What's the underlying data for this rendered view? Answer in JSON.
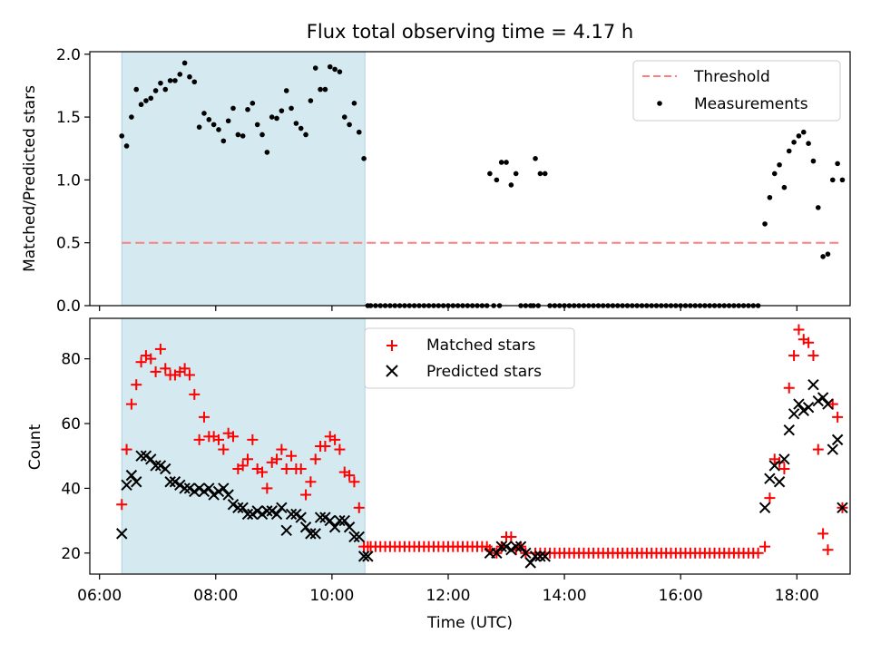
{
  "chart_data": [
    {
      "type": "scatter",
      "title": "Flux total observing time = 4.17 h",
      "xlabel": "",
      "ylabel": "Matched/Predicted stars",
      "xlim": [
        "05:50",
        "18:55"
      ],
      "ylim": [
        0,
        2.02
      ],
      "yticks": [
        "0.0",
        "0.5",
        "1.0",
        "1.5",
        "2.0"
      ],
      "shaded_region": {
        "x": [
          "06:23",
          "10:34"
        ],
        "color": "#d4e9f0"
      },
      "threshold": {
        "value": 0.5,
        "x": [
          "06:23",
          "18:45"
        ],
        "color": "#ff7f7f",
        "style": "dashed"
      },
      "legend": {
        "position": "top-right",
        "entries": [
          "Threshold",
          "Measurements"
        ]
      },
      "series": [
        {
          "name": "Measurements",
          "color": "#000000",
          "marker": "dot",
          "x": [
            "06:23",
            "06:28",
            "06:33",
            "06:38",
            "06:43",
            "06:48",
            "06:53",
            "06:58",
            "07:03",
            "07:08",
            "07:13",
            "07:18",
            "07:23",
            "07:28",
            "07:33",
            "07:38",
            "07:43",
            "07:48",
            "07:53",
            "07:58",
            "08:03",
            "08:08",
            "08:13",
            "08:18",
            "08:23",
            "08:28",
            "08:33",
            "08:38",
            "08:43",
            "08:48",
            "08:53",
            "08:58",
            "09:03",
            "09:08",
            "09:13",
            "09:18",
            "09:23",
            "09:28",
            "09:33",
            "09:38",
            "09:43",
            "09:48",
            "09:53",
            "09:58",
            "10:03",
            "10:08",
            "10:13",
            "10:18",
            "10:23",
            "10:28",
            "10:33",
            "10:37",
            "12:43",
            "12:50",
            "12:55",
            "13:00",
            "13:05",
            "13:10",
            "13:15",
            "13:20",
            "13:30",
            "13:35",
            "13:40",
            "13:45",
            "17:27",
            "17:32",
            "17:37",
            "17:42",
            "17:47",
            "17:52",
            "17:57",
            "18:02",
            "18:07",
            "18:12",
            "18:17",
            "18:22",
            "18:27",
            "18:32",
            "18:37",
            "18:42",
            "18:47"
          ],
          "y": [
            1.35,
            1.27,
            1.5,
            1.72,
            1.6,
            1.63,
            1.65,
            1.71,
            1.77,
            1.72,
            1.79,
            1.79,
            1.84,
            1.93,
            1.82,
            1.78,
            1.42,
            1.53,
            1.48,
            1.44,
            1.4,
            1.31,
            1.47,
            1.57,
            1.36,
            1.35,
            1.56,
            1.61,
            1.44,
            1.36,
            1.22,
            1.5,
            1.49,
            1.55,
            1.71,
            1.57,
            1.45,
            1.41,
            1.36,
            1.63,
            1.89,
            1.72,
            1.72,
            1.9,
            1.88,
            1.86,
            1.5,
            1.44,
            1.61,
            1.38,
            1.17,
            0.0,
            1.05,
            1.0,
            1.14,
            1.14,
            0.96,
            1.05,
            0.0,
            0.0,
            1.17,
            1.05,
            1.05,
            0.0,
            0.65,
            0.86,
            1.05,
            1.12,
            0.94,
            1.23,
            1.3,
            1.35,
            1.38,
            1.29,
            1.15,
            0.78,
            0.39,
            0.41,
            1.0,
            1.13,
            1.0
          ]
        },
        {
          "name": "",
          "color": "#000000",
          "marker": "dot",
          "y_constant": 0.0,
          "x": [
            "10:40",
            "10:45",
            "10:50",
            "10:55",
            "11:00",
            "11:05",
            "11:10",
            "11:15",
            "11:20",
            "11:25",
            "11:30",
            "11:35",
            "11:40",
            "11:45",
            "11:50",
            "11:55",
            "12:00",
            "12:05",
            "12:10",
            "12:15",
            "12:20",
            "12:25",
            "12:30",
            "12:35",
            "12:40",
            "12:47",
            "12:53",
            "13:25",
            "13:28",
            "13:33",
            "13:50",
            "13:55",
            "14:00",
            "14:05",
            "14:10",
            "14:15",
            "14:20",
            "14:25",
            "14:30",
            "14:35",
            "14:40",
            "14:45",
            "14:50",
            "14:55",
            "15:00",
            "15:05",
            "15:10",
            "15:15",
            "15:20",
            "15:25",
            "15:30",
            "15:35",
            "15:40",
            "15:45",
            "15:50",
            "15:55",
            "16:00",
            "16:05",
            "16:10",
            "16:15",
            "16:20",
            "16:25",
            "16:30",
            "16:35",
            "16:40",
            "16:45",
            "16:50",
            "16:55",
            "17:00",
            "17:05",
            "17:10",
            "17:15",
            "17:20"
          ]
        }
      ]
    },
    {
      "type": "scatter",
      "title": "",
      "xlabel": "Time (UTC)",
      "ylabel": "Count",
      "xlim": [
        "05:50",
        "18:55"
      ],
      "ylim": [
        13.5,
        92.5
      ],
      "yticks": [
        "20",
        "40",
        "60",
        "80"
      ],
      "xticks": [
        "06:00",
        "08:00",
        "10:00",
        "12:00",
        "14:00",
        "16:00",
        "18:00"
      ],
      "shaded_region": {
        "x": [
          "06:23",
          "10:34"
        ],
        "color": "#d4e9f0"
      },
      "legend": {
        "position": "top-center",
        "entries": [
          "Matched stars",
          "Predicted stars"
        ]
      },
      "series": [
        {
          "name": "Matched stars",
          "color": "#ff0000",
          "marker": "plus",
          "x": [
            "06:23",
            "06:28",
            "06:33",
            "06:38",
            "06:43",
            "06:48",
            "06:53",
            "06:58",
            "07:03",
            "07:08",
            "07:13",
            "07:18",
            "07:23",
            "07:28",
            "07:33",
            "07:38",
            "07:43",
            "07:48",
            "07:53",
            "07:58",
            "08:03",
            "08:08",
            "08:13",
            "08:18",
            "08:23",
            "08:28",
            "08:33",
            "08:38",
            "08:43",
            "08:48",
            "08:53",
            "08:58",
            "09:03",
            "09:08",
            "09:13",
            "09:18",
            "09:23",
            "09:28",
            "09:33",
            "09:38",
            "09:43",
            "09:48",
            "09:53",
            "09:58",
            "10:03",
            "10:08",
            "10:13",
            "10:18",
            "10:23",
            "10:28",
            "10:33",
            "10:37",
            "12:43",
            "12:50",
            "12:55",
            "13:00",
            "13:05",
            "13:10",
            "13:15",
            "13:20",
            "13:30",
            "13:35",
            "13:40",
            "13:45",
            "17:27",
            "17:32",
            "17:37",
            "17:42",
            "17:47",
            "17:52",
            "17:57",
            "18:02",
            "18:07",
            "18:12",
            "18:17",
            "18:22",
            "18:27",
            "18:32",
            "18:37",
            "18:42",
            "18:47"
          ],
          "y": [
            35,
            52,
            66,
            72,
            79,
            81,
            80,
            76,
            83,
            77,
            75,
            75,
            76,
            77,
            75,
            69,
            55,
            62,
            56,
            56,
            55,
            52,
            57,
            56,
            46,
            47,
            49,
            55,
            46,
            45,
            40,
            48,
            49,
            52,
            46,
            50,
            46,
            46,
            38,
            42,
            49,
            53,
            53,
            56,
            55,
            52,
            45,
            44,
            42,
            34,
            22,
            22,
            21,
            20,
            22,
            25,
            25,
            21,
            22,
            20,
            20,
            20,
            20,
            20,
            22,
            37,
            49,
            48,
            46,
            71,
            81,
            89,
            86,
            85,
            81,
            52,
            26,
            21,
            66,
            62,
            34
          ],
          "note_hidden_tail": "last value shown near 34 at 18:47"
        },
        {
          "name": "",
          "color": "#ff0000",
          "marker": "plus",
          "y_constant": 22,
          "x": [
            "10:40",
            "10:45",
            "10:50",
            "10:55",
            "11:00",
            "11:05",
            "11:10",
            "11:15",
            "11:20",
            "11:25",
            "11:30",
            "11:35",
            "11:40",
            "11:45",
            "11:50",
            "11:55",
            "12:00",
            "12:05",
            "12:10",
            "12:15",
            "12:20",
            "12:25",
            "12:30",
            "12:35",
            "12:40"
          ]
        },
        {
          "name": "",
          "color": "#ff0000",
          "marker": "plus",
          "y_constant": 20,
          "x": [
            "13:50",
            "13:55",
            "14:00",
            "14:05",
            "14:10",
            "14:15",
            "14:20",
            "14:25",
            "14:30",
            "14:35",
            "14:40",
            "14:45",
            "14:50",
            "14:55",
            "15:00",
            "15:05",
            "15:10",
            "15:15",
            "15:20",
            "15:25",
            "15:30",
            "15:35",
            "15:40",
            "15:45",
            "15:50",
            "15:55",
            "16:00",
            "16:05",
            "16:10",
            "16:15",
            "16:20",
            "16:25",
            "16:30",
            "16:35",
            "16:40",
            "16:45",
            "16:50",
            "16:55",
            "17:00",
            "17:05",
            "17:10",
            "17:15",
            "17:20"
          ]
        },
        {
          "name": "Predicted stars",
          "color": "#000000",
          "marker": "x",
          "x": [
            "06:23",
            "06:28",
            "06:33",
            "06:38",
            "06:43",
            "06:48",
            "06:53",
            "06:58",
            "07:03",
            "07:08",
            "07:13",
            "07:18",
            "07:23",
            "07:28",
            "07:33",
            "07:38",
            "07:43",
            "07:48",
            "07:53",
            "07:58",
            "08:03",
            "08:08",
            "08:13",
            "08:18",
            "08:23",
            "08:28",
            "08:33",
            "08:38",
            "08:43",
            "08:48",
            "08:53",
            "08:58",
            "09:03",
            "09:08",
            "09:13",
            "09:18",
            "09:23",
            "09:28",
            "09:33",
            "09:38",
            "09:43",
            "09:48",
            "09:53",
            "09:58",
            "10:03",
            "10:08",
            "10:13",
            "10:18",
            "10:23",
            "10:28",
            "10:33",
            "10:37",
            "12:43",
            "12:50",
            "12:55",
            "13:00",
            "13:05",
            "13:10",
            "13:15",
            "13:20",
            "13:25",
            "13:30",
            "13:35",
            "13:40",
            "17:27",
            "17:32",
            "17:37",
            "17:42",
            "17:47",
            "17:52",
            "17:57",
            "18:02",
            "18:07",
            "18:12",
            "18:17",
            "18:22",
            "18:27",
            "18:32",
            "18:37",
            "18:42",
            "18:47"
          ],
          "y": [
            26,
            41,
            44,
            42,
            50,
            50,
            49,
            47,
            47,
            46,
            42,
            42,
            41,
            40,
            40,
            39,
            40,
            39,
            40,
            38,
            39,
            40,
            38,
            35,
            34,
            34,
            32,
            32,
            33,
            32,
            33,
            33,
            32,
            34,
            27,
            32,
            32,
            31,
            28,
            26,
            26,
            31,
            31,
            30,
            28,
            30,
            30,
            28,
            25,
            25,
            19,
            19,
            20,
            20,
            22,
            22,
            21,
            22,
            22,
            20,
            17,
            19,
            19,
            19,
            34,
            43,
            47,
            42,
            49,
            58,
            63,
            66,
            64,
            65,
            72,
            67,
            68,
            66,
            52,
            55,
            34
          ]
        }
      ]
    }
  ]
}
